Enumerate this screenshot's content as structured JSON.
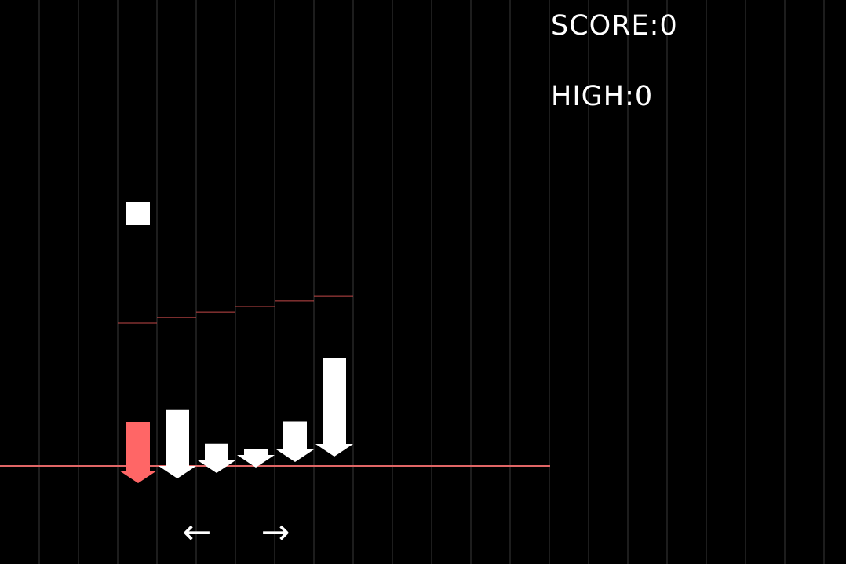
{
  "hud": {
    "score_label": "SCORE:",
    "score_value": "0",
    "high_label": "HIGH:",
    "high_value": "0"
  },
  "controls": {
    "left_arrow": "←",
    "right_arrow": "→"
  },
  "game": {
    "columns": 6,
    "active_column": 0,
    "pillar_levels": [
      0.53,
      0.62,
      0.13,
      0.0,
      0.27,
      1.0
    ],
    "lane_marker_levels": [
      0.0,
      0.17,
      0.33,
      0.5,
      0.67,
      0.83
    ]
  },
  "colors": {
    "background": "#000000",
    "gridline": "#3a3a3a",
    "hit_line": "#e06666",
    "lane_marker": "#c24848",
    "player_arrow": "#ff6666",
    "pillar": "#ffffff",
    "note": "#ffffff"
  },
  "icons": {
    "falling_note": "square-note-icon",
    "player": "down-arrow-icon"
  }
}
